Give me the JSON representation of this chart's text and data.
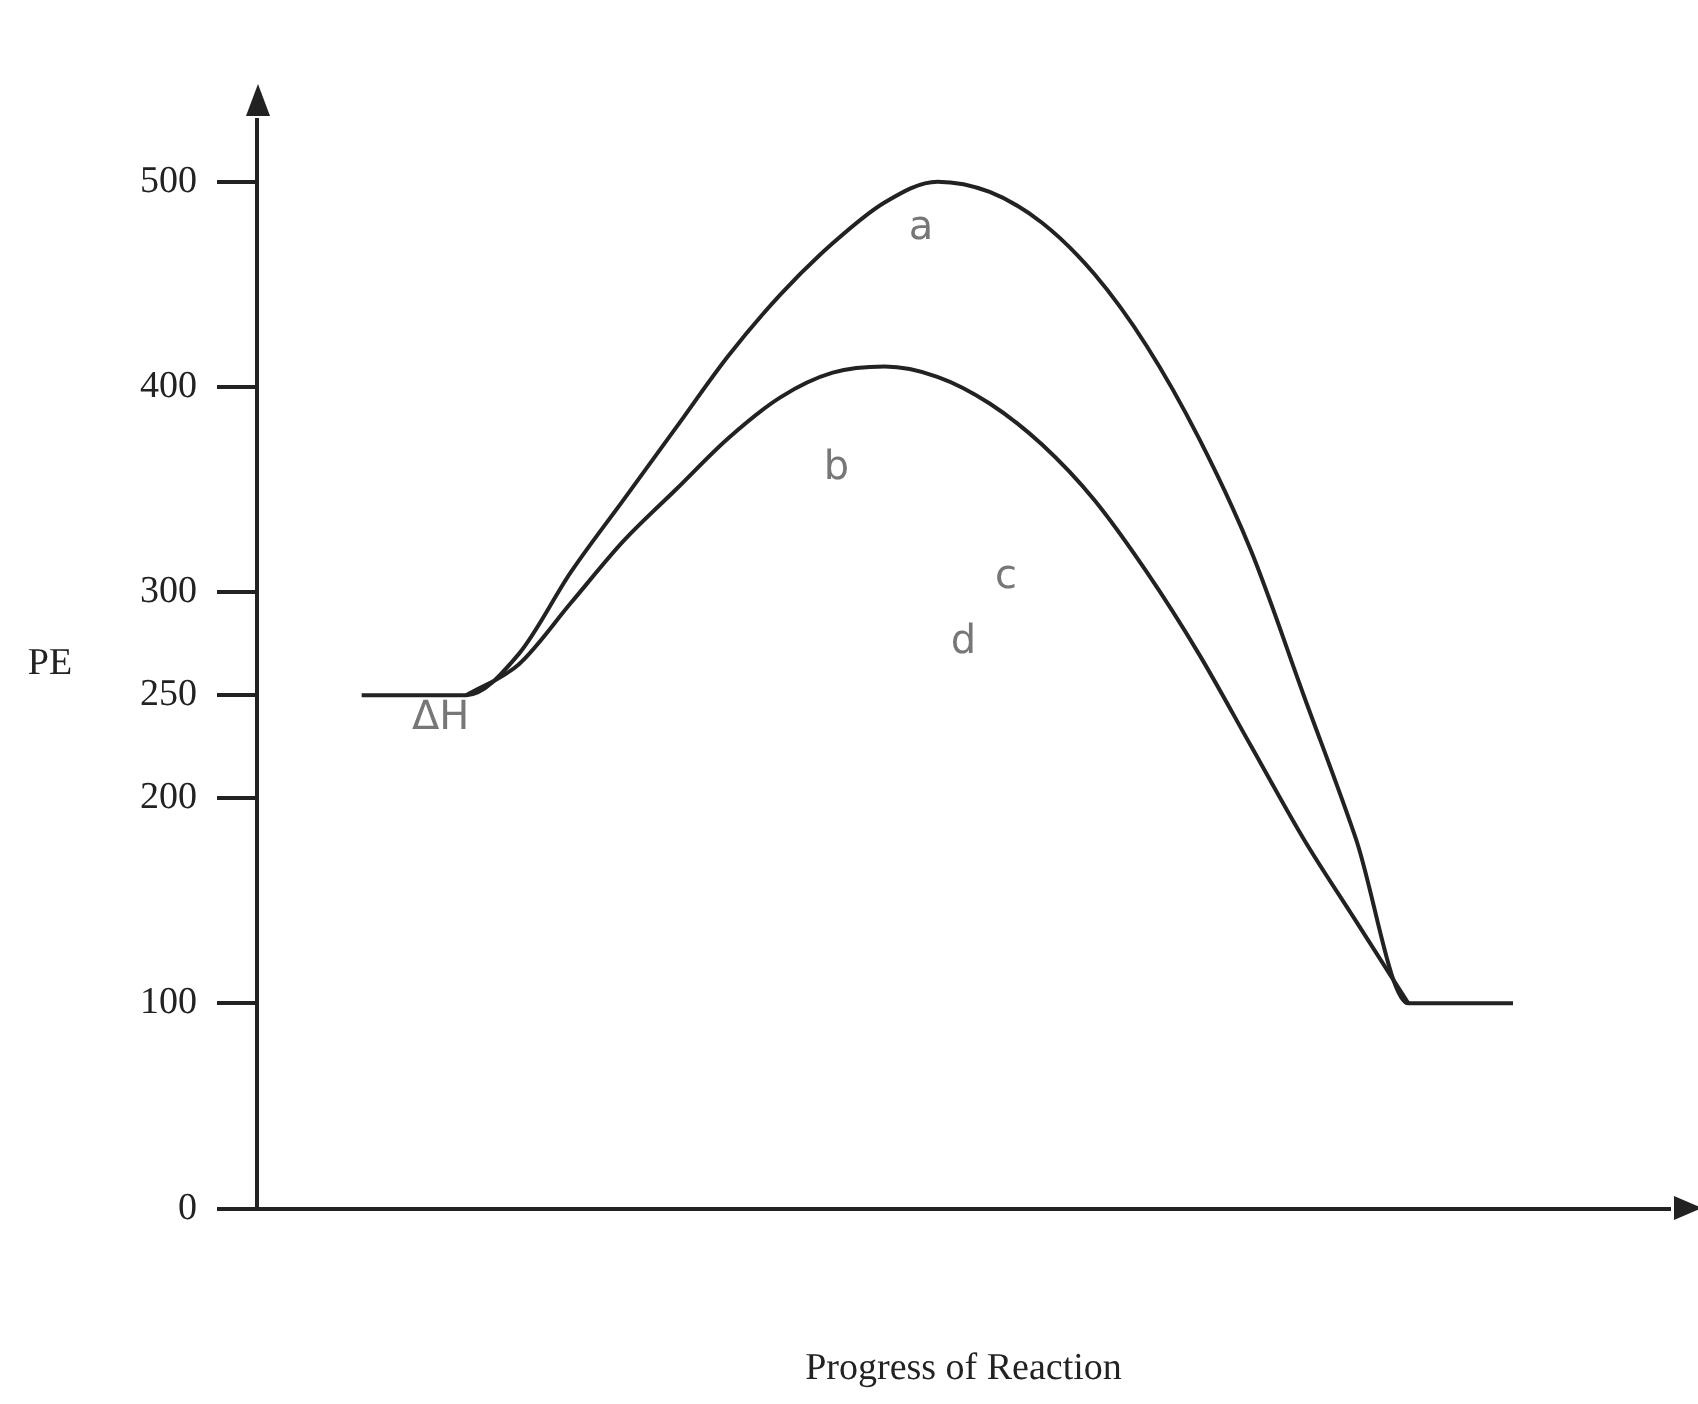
{
  "chart_data": {
    "type": "line",
    "xlabel": "Progress of Reaction",
    "ylabel": "PE",
    "categories": [
      null,
      null,
      null,
      null,
      null,
      null,
      null,
      null,
      null,
      null,
      null,
      null,
      null,
      null,
      null,
      null,
      null,
      null,
      null,
      null,
      null,
      null,
      null,
      null,
      null,
      null,
      null,
      null
    ],
    "series": [
      {
        "color": "#222222",
        "values": [
          null,
          null,
          250,
          250,
          250,
          270,
          310,
          345,
          380,
          415,
          445,
          470,
          490,
          500,
          495,
          480,
          455,
          420,
          375,
          320,
          250,
          180,
          100,
          100,
          100,
          null,
          null,
          null
        ]
      },
      {
        "color": "#222222",
        "values": [
          null,
          null,
          null,
          null,
          250,
          265,
          295,
          325,
          350,
          375,
          395,
          407,
          410,
          405,
          392,
          372,
          345,
          310,
          270,
          225,
          180,
          140,
          100,
          null,
          null,
          null,
          null,
          null
        ]
      }
    ],
    "ylim": [
      0,
      530
    ],
    "yticks": [
      0,
      100,
      200,
      250,
      300,
      400,
      500
    ],
    "grid": false,
    "marker": "none",
    "line_style": "solid",
    "annotations": [
      "ΔH",
      "a",
      "b",
      "c",
      "d"
    ]
  }
}
